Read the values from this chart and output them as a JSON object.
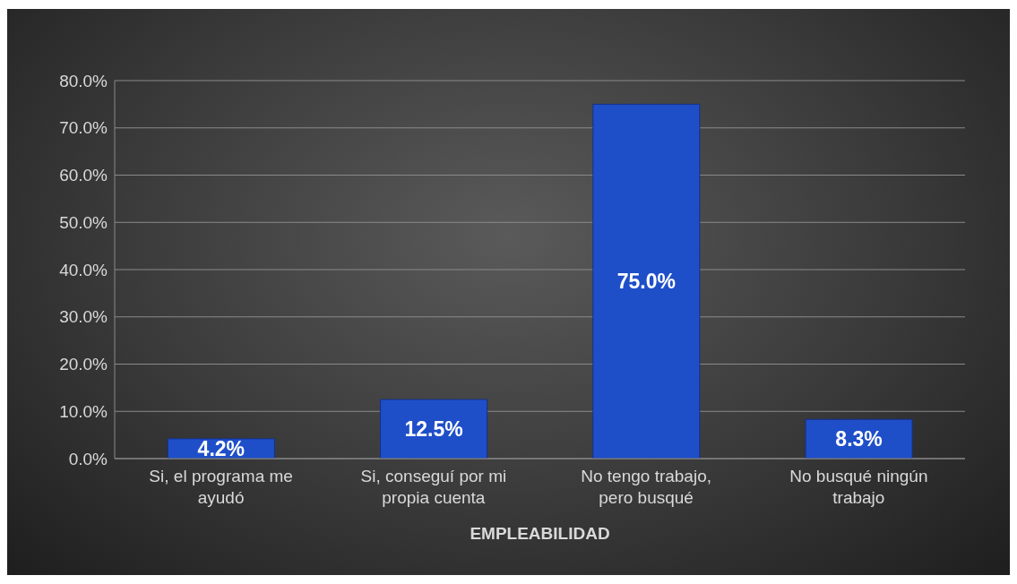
{
  "chart_data": {
    "type": "bar",
    "xlabel": "EMPLEABILIDAD",
    "categories": [
      "Si, el programa me ayudó",
      "Si, conseguí por mi propia cuenta",
      "No tengo trabajo, pero busqué",
      "No busqué ningún trabajo"
    ],
    "values": [
      4.2,
      12.5,
      75.0,
      8.3
    ],
    "value_labels": [
      "4.2%",
      "12.5%",
      "75.0%",
      "8.3%"
    ],
    "color": "#1f4fc8",
    "ylim": [
      0,
      80
    ],
    "yticks": [
      {
        "value": 0,
        "label": "0.0%"
      },
      {
        "value": 10,
        "label": "10.0%"
      },
      {
        "value": 20,
        "label": "20.0%"
      },
      {
        "value": 30,
        "label": "30.0%"
      },
      {
        "value": 40,
        "label": "40.0%"
      },
      {
        "value": 50,
        "label": "50.0%"
      },
      {
        "value": 60,
        "label": "60.0%"
      },
      {
        "value": 70,
        "label": "70.0%"
      },
      {
        "value": 80,
        "label": "80.0%"
      }
    ],
    "grid": "y"
  }
}
